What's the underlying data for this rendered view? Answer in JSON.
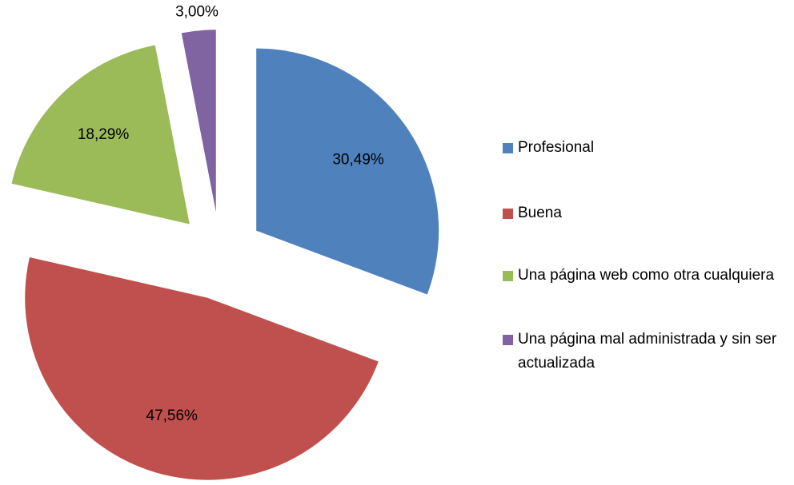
{
  "chart_data": {
    "type": "pie",
    "categories": [
      "Profesional",
      "Buena",
      "Una página web como otra cualquiera",
      "Una página mal administrada y sin ser actualizada"
    ],
    "values": [
      30.49,
      47.56,
      18.29,
      3.0
    ],
    "value_labels": [
      "30,49%",
      "47,56%",
      "18,29%",
      "3,00%"
    ],
    "colors": [
      "#4f81bd",
      "#c0504d",
      "#9bbb59",
      "#8064a2"
    ]
  }
}
